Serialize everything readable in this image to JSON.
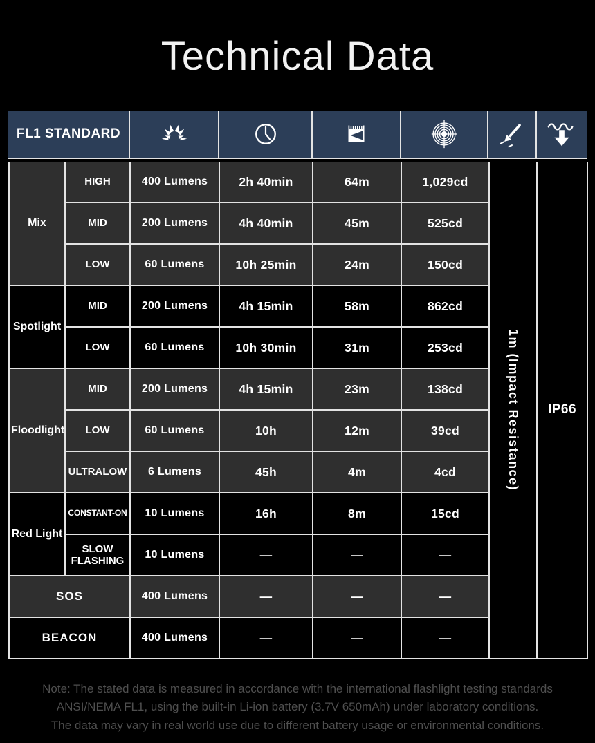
{
  "title": "Technical Data",
  "colors": {
    "background": "#000000",
    "header_blue": "#2c3e58",
    "cell_gray": "#2f2f2f",
    "cell_black": "#000000",
    "grid_line": "#e3e3e3",
    "note_gray": "#4f4f4f",
    "text_white": "#ffffff"
  },
  "table": {
    "header": {
      "label": "FL1 STANDARD",
      "icons": [
        "brightness-icon",
        "runtime-clock-icon",
        "beam-distance-icon",
        "peak-intensity-icon",
        "impact-resistance-icon",
        "waterproof-icon"
      ]
    },
    "groups": [
      {
        "name": "Mix",
        "shade": "gray",
        "rows": [
          {
            "mode": "HIGH",
            "lumens": "400 Lumens",
            "runtime": "2h 40min",
            "distance": "64m",
            "intensity": "1,029cd"
          },
          {
            "mode": "MID",
            "lumens": "200 Lumens",
            "runtime": "4h 40min",
            "distance": "45m",
            "intensity": "525cd"
          },
          {
            "mode": "LOW",
            "lumens": "60 Lumens",
            "runtime": "10h 25min",
            "distance": "24m",
            "intensity": "150cd"
          }
        ]
      },
      {
        "name": "Spotlight",
        "shade": "black",
        "rows": [
          {
            "mode": "MID",
            "lumens": "200 Lumens",
            "runtime": "4h 15min",
            "distance": "58m",
            "intensity": "862cd"
          },
          {
            "mode": "LOW",
            "lumens": "60 Lumens",
            "runtime": "10h 30min",
            "distance": "31m",
            "intensity": "253cd"
          }
        ]
      },
      {
        "name": "Floodlight",
        "shade": "gray",
        "rows": [
          {
            "mode": "MID",
            "lumens": "200 Lumens",
            "runtime": "4h 15min",
            "distance": "23m",
            "intensity": "138cd"
          },
          {
            "mode": "LOW",
            "lumens": "60 Lumens",
            "runtime": "10h",
            "distance": "12m",
            "intensity": "39cd"
          },
          {
            "mode": "ULTRALOW",
            "lumens": "6 Lumens",
            "runtime": "45h",
            "distance": "4m",
            "intensity": "4cd"
          }
        ]
      },
      {
        "name": "Red Light",
        "shade": "black",
        "rows": [
          {
            "mode": "CONSTANT-ON",
            "small": true,
            "lumens": "10 Lumens",
            "runtime": "16h",
            "distance": "8m",
            "intensity": "15cd"
          },
          {
            "mode": "SLOW FLASHING",
            "lumens": "10 Lumens",
            "runtime": "—",
            "distance": "—",
            "intensity": "—"
          }
        ]
      },
      {
        "name": "SOS",
        "shade": "gray",
        "merged": true,
        "rows": [
          {
            "lumens": "400 Lumens",
            "runtime": "—",
            "distance": "—",
            "intensity": "—"
          }
        ]
      },
      {
        "name": "BEACON",
        "shade": "black",
        "merged": true,
        "rows": [
          {
            "lumens": "400 Lumens",
            "runtime": "—",
            "distance": "—",
            "intensity": "—"
          }
        ]
      }
    ],
    "impact_resistance": "1m (Impact Resistance)",
    "ip_rating": "IP66"
  },
  "note": {
    "lines": [
      "Note: The stated data is measured in accordance with the international flashlight testing standards",
      "ANSI/NEMA FL1, using the built-in Li-ion battery (3.7V 650mAh) under laboratory conditions.",
      "The data may vary in real world use due to different battery usage or environmental conditions."
    ]
  }
}
